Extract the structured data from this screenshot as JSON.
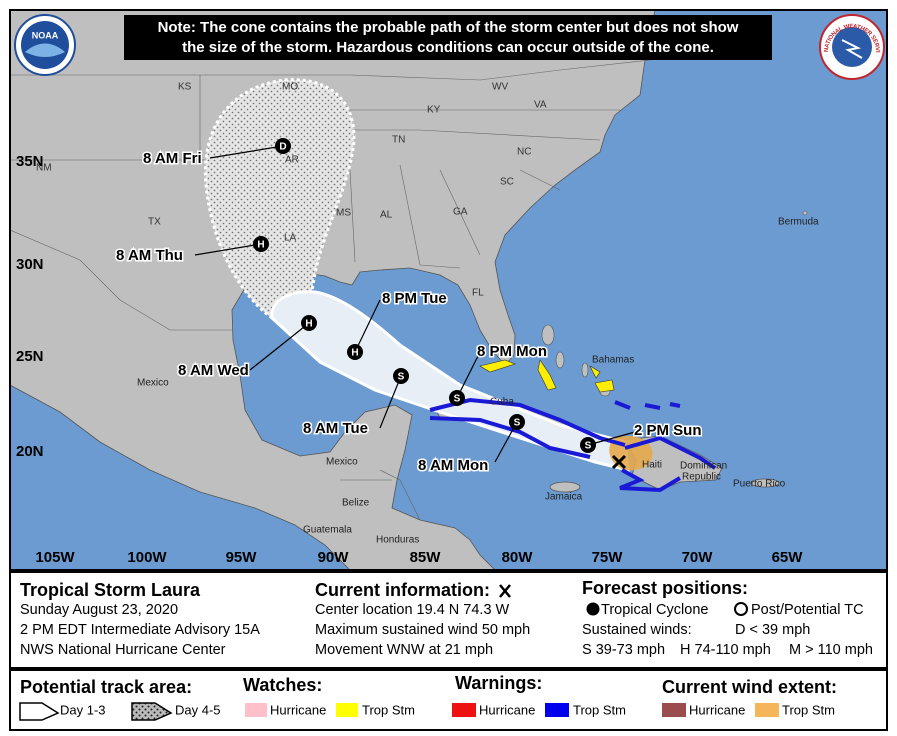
{
  "note": [
    "Note: The cone contains the probable path of the storm center but does not show",
    "the size of the storm. Hazardous conditions can occur outside of the cone."
  ],
  "logos": {
    "noaa": "NOAA",
    "nws": "NATIONAL WEATHER SERVICE"
  },
  "map": {
    "latitude_labels": [
      "35N",
      "30N",
      "25N",
      "20N"
    ],
    "longitude_labels": [
      "105W",
      "100W",
      "95W",
      "90W",
      "85W",
      "80W",
      "75W",
      "70W",
      "65W"
    ],
    "places": [
      "KS",
      "MO",
      "KY",
      "WV",
      "VA",
      "NM",
      "AR",
      "TN",
      "NC",
      "SC",
      "TX",
      "MS",
      "AL",
      "GA",
      "LA",
      "FL",
      "Bermuda",
      "Mexico",
      "Bahamas",
      "Cuba",
      "Mexico",
      "Haiti",
      "Dominican",
      "Republic",
      "Jamaica",
      "Puerto Rico",
      "Belize",
      "Guatemala",
      "Honduras"
    ],
    "forecast_times": [
      "8 AM Fri",
      "8 AM Thu",
      "8 AM Wed",
      "8 PM Tue",
      "8 AM Tue",
      "8 PM Mon",
      "8 AM Mon",
      "2 PM Sun"
    ],
    "forecast_symbols": [
      "D",
      "H",
      "H",
      "H",
      "S",
      "S",
      "S",
      "S"
    ]
  },
  "info": {
    "storm": "Tropical Storm Laura",
    "date": "Sunday August 23, 2020",
    "advisory": "2 PM EDT Intermediate Advisory 15A",
    "center": "NWS National Hurricane Center",
    "current_title": "Current information:",
    "current": [
      "Center location 19.4 N 74.3 W",
      "Maximum sustained wind 50 mph",
      "Movement WNW at 21 mph"
    ],
    "forecast_title": "Forecast positions:",
    "tropical_cyclone": "Tropical Cyclone",
    "post_potential": "Post/Potential TC",
    "sustained": "Sustained winds:",
    "d_range": "D < 39 mph",
    "s_range": "S 39-73 mph",
    "h_range": "H 74-110 mph",
    "m_range": "M > 110 mph"
  },
  "legend": {
    "track_title": "Potential track area:",
    "day13": "Day 1-3",
    "day45": "Day 4-5",
    "watches": "Watches:",
    "warnings": "Warnings:",
    "wind": "Current wind extent:",
    "watch_hurricane": "Hurricane",
    "watch_ts": "Trop Stm",
    "warn_hurricane": "Hurricane",
    "warn_ts": "Trop Stm",
    "wind_hurricane": "Hurricane",
    "wind_ts": "Trop Stm"
  }
}
